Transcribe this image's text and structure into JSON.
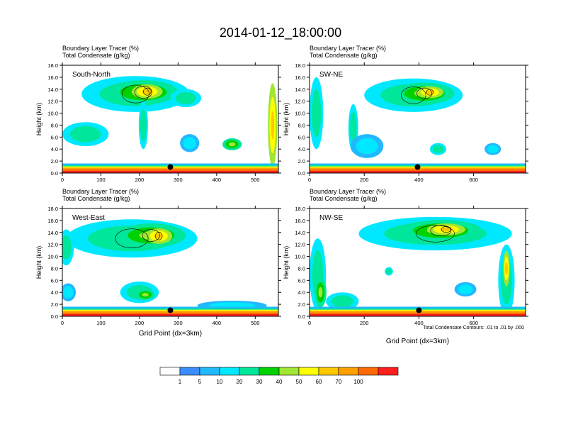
{
  "figure": {
    "title": "2014-01-12_18:00:00",
    "contour_note": "Total Condensate Contours: .01 to .01 by .000",
    "colorbar_labels": [
      "1",
      "5",
      "10",
      "20",
      "30",
      "40",
      "50",
      "60",
      "70",
      "100"
    ],
    "colorbar_colors": [
      "#ffffff",
      "#3b8eff",
      "#22b8ff",
      "#00e8ff",
      "#00e69a",
      "#00d200",
      "#a0e632",
      "#ffff00",
      "#ffc800",
      "#ffa000",
      "#ff6a00",
      "#ff1e1e"
    ]
  },
  "panels": [
    {
      "subtitle1": "Boundary Layer Tracer   (%)",
      "subtitle2": "Total Condensate   (g/kg)"
    },
    {
      "subtitle1": "Boundary Layer Tracer   (%)",
      "subtitle2": "Total Condensate   (g/kg)"
    },
    {
      "subtitle1": "Boundary Layer Tracer   (%)",
      "subtitle2": "Total Condensate   (g/kg)"
    },
    {
      "subtitle1": "Boundary Layer Tracer   (%)",
      "subtitle2": "Total Condensate   (g/kg)"
    }
  ],
  "chart_data": [
    {
      "type": "heatmap",
      "label": "South-North",
      "ylabel": "Height (km)",
      "xlabel": "",
      "xlim": [
        0,
        560
      ],
      "ylim": [
        0,
        18
      ],
      "xticks": [
        0,
        100,
        200,
        300,
        400,
        500
      ],
      "yticks": [
        "0.0",
        "2.0",
        "4.0",
        "6.0",
        "8.0",
        "10.0",
        "12.0",
        "14.0",
        "16.0",
        "18.0"
      ],
      "marker": {
        "x": 280,
        "y": 1.0
      },
      "blobs": [
        {
          "x": 190,
          "y": 13.2,
          "rx": 140,
          "ry": 3.0,
          "v": 2
        },
        {
          "x": 210,
          "y": 13.5,
          "rx": 90,
          "ry": 2.0,
          "v": 3
        },
        {
          "x": 220,
          "y": 13.6,
          "rx": 40,
          "ry": 1.2,
          "v": 4
        },
        {
          "x": 320,
          "y": 12.5,
          "rx": 40,
          "ry": 1.5,
          "v": 2
        },
        {
          "x": 60,
          "y": 6.5,
          "rx": 60,
          "ry": 2.0,
          "v": 2
        },
        {
          "x": 440,
          "y": 4.8,
          "rx": 25,
          "ry": 1.0,
          "v": 3
        },
        {
          "x": 545,
          "y": 8.0,
          "rx": 12,
          "ry": 7.0,
          "v": 4
        },
        {
          "x": 210,
          "y": 8.0,
          "rx": 12,
          "ry": 4.0,
          "v": 2
        },
        {
          "x": 330,
          "y": 5.0,
          "rx": 25,
          "ry": 1.5,
          "v": 1
        }
      ]
    },
    {
      "type": "heatmap",
      "label": "SW-NE",
      "ylabel": "Height (km)",
      "xlabel": "",
      "xlim": [
        0,
        790
      ],
      "ylim": [
        0,
        18
      ],
      "xticks": [
        0,
        200,
        400,
        600
      ],
      "yticks": [
        "0.0",
        "2.0",
        "4.0",
        "6.0",
        "8.0",
        "10.0",
        "12.0",
        "14.0",
        "16.0",
        "18.0"
      ],
      "marker": {
        "x": 395,
        "y": 1.0
      },
      "blobs": [
        {
          "x": 380,
          "y": 13.0,
          "rx": 180,
          "ry": 2.8,
          "v": 2
        },
        {
          "x": 420,
          "y": 13.3,
          "rx": 110,
          "ry": 1.8,
          "v": 3
        },
        {
          "x": 440,
          "y": 13.5,
          "rx": 50,
          "ry": 1.0,
          "v": 4
        },
        {
          "x": 25,
          "y": 10.0,
          "rx": 25,
          "ry": 6.0,
          "v": 2
        },
        {
          "x": 160,
          "y": 7.5,
          "rx": 18,
          "ry": 4.0,
          "v": 2
        },
        {
          "x": 210,
          "y": 4.5,
          "rx": 60,
          "ry": 2.0,
          "v": 1
        },
        {
          "x": 470,
          "y": 4.0,
          "rx": 30,
          "ry": 1.0,
          "v": 2
        },
        {
          "x": 670,
          "y": 4.0,
          "rx": 30,
          "ry": 1.0,
          "v": 1
        }
      ]
    },
    {
      "type": "heatmap",
      "label": "West-East",
      "ylabel": "Height (km)",
      "xlabel": "Grid Point (dx=3km)",
      "xlim": [
        0,
        560
      ],
      "ylim": [
        0,
        18
      ],
      "xticks": [
        0,
        100,
        200,
        300,
        400,
        500
      ],
      "yticks": [
        "0.0",
        "2.0",
        "4.0",
        "6.0",
        "8.0",
        "10.0",
        "12.0",
        "14.0",
        "16.0",
        "18.0"
      ],
      "marker": {
        "x": 280,
        "y": 1.0
      },
      "blobs": [
        {
          "x": 180,
          "y": 13.0,
          "rx": 170,
          "ry": 3.2,
          "v": 2
        },
        {
          "x": 230,
          "y": 13.5,
          "rx": 90,
          "ry": 2.0,
          "v": 3
        },
        {
          "x": 250,
          "y": 13.4,
          "rx": 35,
          "ry": 1.3,
          "v": 4
        },
        {
          "x": 10,
          "y": 11.5,
          "rx": 20,
          "ry": 3.0,
          "v": 2
        },
        {
          "x": 200,
          "y": 4.0,
          "rx": 50,
          "ry": 1.8,
          "v": 2
        },
        {
          "x": 215,
          "y": 3.6,
          "rx": 25,
          "ry": 0.9,
          "v": 3
        },
        {
          "x": 440,
          "y": 1.8,
          "rx": 90,
          "ry": 0.8,
          "v": 1
        },
        {
          "x": 15,
          "y": 4.0,
          "rx": 20,
          "ry": 1.5,
          "v": 1
        }
      ]
    },
    {
      "type": "heatmap",
      "label": "NW-SE",
      "ylabel": "Height (km)",
      "xlabel": "Grid Point (dx=3km)",
      "xlim": [
        0,
        790
      ],
      "ylim": [
        0,
        18
      ],
      "xticks": [
        0,
        200,
        400,
        600
      ],
      "yticks": [
        "0.0",
        "2.0",
        "4.0",
        "6.0",
        "8.0",
        "10.0",
        "12.0",
        "14.0",
        "16.0",
        "18.0"
      ],
      "marker": {
        "x": 400,
        "y": 1.0
      },
      "blobs": [
        {
          "x": 460,
          "y": 13.8,
          "rx": 280,
          "ry": 2.8,
          "v": 2
        },
        {
          "x": 480,
          "y": 14.3,
          "rx": 150,
          "ry": 1.8,
          "v": 3
        },
        {
          "x": 500,
          "y": 14.5,
          "rx": 70,
          "ry": 1.0,
          "v": 4
        },
        {
          "x": 30,
          "y": 7.0,
          "rx": 30,
          "ry": 6.0,
          "v": 2
        },
        {
          "x": 40,
          "y": 4.0,
          "rx": 22,
          "ry": 2.5,
          "v": 3
        },
        {
          "x": 120,
          "y": 2.5,
          "rx": 60,
          "ry": 1.5,
          "v": 2
        },
        {
          "x": 720,
          "y": 6.0,
          "rx": 30,
          "ry": 6.0,
          "v": 2
        },
        {
          "x": 720,
          "y": 8.0,
          "rx": 12,
          "ry": 3.0,
          "v": 4
        },
        {
          "x": 290,
          "y": 7.5,
          "rx": 15,
          "ry": 0.7,
          "v": 2
        },
        {
          "x": 570,
          "y": 4.5,
          "rx": 40,
          "ry": 1.2,
          "v": 1
        }
      ]
    }
  ]
}
